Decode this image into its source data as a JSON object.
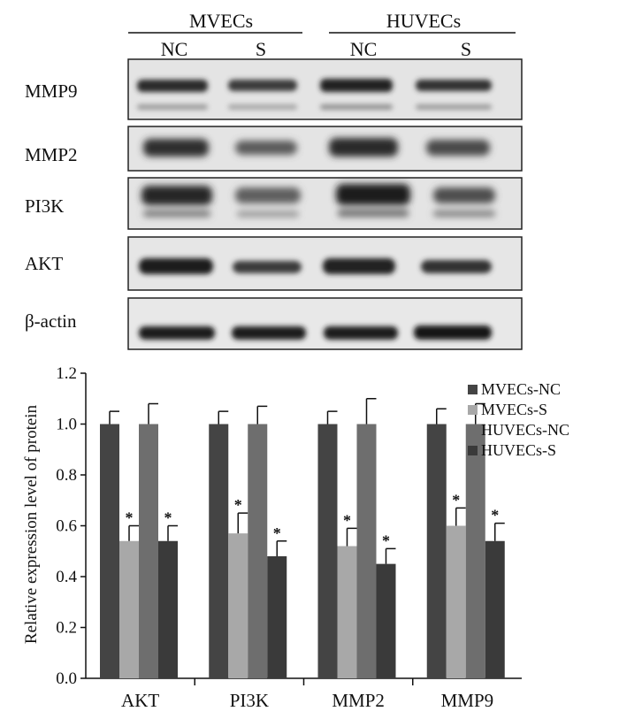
{
  "western_blot": {
    "groups": [
      {
        "name": "MVECs",
        "lanes": [
          "NC",
          "S"
        ]
      },
      {
        "name": "HUVECs",
        "lanes": [
          "NC",
          "S"
        ]
      }
    ],
    "bands": [
      "MMP9",
      "MMP2",
      "PI3K",
      "AKT",
      "β-actin"
    ]
  },
  "chart_data": {
    "type": "bar",
    "categories": [
      "AKT",
      "PI3K",
      "MMP2",
      "MMP9"
    ],
    "ylabel": "Relative expression level of protein",
    "xlabel": "",
    "ylim": [
      0.0,
      1.2
    ],
    "yticks": [
      "0.0",
      "0.2",
      "0.4",
      "0.6",
      "0.8",
      "1.0",
      "1.2"
    ],
    "grid": false,
    "legend_position": "right",
    "significance_marker": "*",
    "series": [
      {
        "name": "MVECs-NC",
        "color": "#444444",
        "values": [
          1.0,
          1.0,
          1.0,
          1.0
        ],
        "errors": [
          0.05,
          0.05,
          0.05,
          0.06
        ],
        "significant": [
          false,
          false,
          false,
          false
        ]
      },
      {
        "name": "MVECs-S",
        "color": "#a8a8a8",
        "values": [
          0.54,
          0.57,
          0.52,
          0.6
        ],
        "errors": [
          0.06,
          0.08,
          0.07,
          0.07
        ],
        "significant": [
          true,
          true,
          true,
          true
        ]
      },
      {
        "name": "HUVECs-NC",
        "color": "#6e6e6e",
        "values": [
          1.0,
          1.0,
          1.0,
          1.0
        ],
        "errors": [
          0.08,
          0.07,
          0.1,
          0.08
        ],
        "significant": [
          false,
          false,
          false,
          false
        ]
      },
      {
        "name": "HUVECs-S",
        "color": "#3a3a3a",
        "values": [
          0.54,
          0.48,
          0.45,
          0.54
        ],
        "errors": [
          0.06,
          0.06,
          0.06,
          0.07
        ],
        "significant": [
          true,
          true,
          true,
          true
        ]
      }
    ]
  }
}
